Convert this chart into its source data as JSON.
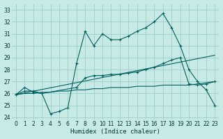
{
  "xlabel": "Humidex (Indice chaleur)",
  "bg_color": "#c8eae6",
  "grid_color": "#9dcfca",
  "line_color": "#006060",
  "x_ticks": [
    0,
    1,
    2,
    3,
    4,
    5,
    6,
    7,
    8,
    9,
    10,
    11,
    12,
    13,
    14,
    15,
    16,
    17,
    18,
    19,
    20,
    21,
    22,
    23
  ],
  "xlim": [
    -0.5,
    23.5
  ],
  "ylim": [
    23.8,
    33.5
  ],
  "yticks": [
    24,
    25,
    26,
    27,
    28,
    29,
    30,
    31,
    32,
    33
  ],
  "line1_x": [
    0,
    1,
    2,
    3,
    4,
    5,
    6,
    7,
    8,
    9,
    10,
    11,
    12,
    13,
    14,
    15,
    16,
    17,
    18,
    19,
    20,
    21,
    22,
    23
  ],
  "line1_y": [
    25.9,
    26.5,
    26.1,
    26.0,
    24.3,
    24.5,
    24.8,
    28.5,
    31.2,
    30.0,
    31.0,
    30.5,
    30.5,
    30.8,
    31.2,
    31.5,
    32.0,
    32.7,
    31.5,
    30.0,
    28.0,
    27.0,
    26.3,
    25.0
  ],
  "line1_markers": [
    0,
    1,
    2,
    3,
    4,
    5,
    6,
    7,
    8,
    9,
    10,
    11,
    12,
    13,
    14,
    15,
    16,
    17,
    18,
    19,
    20,
    21,
    22,
    23
  ],
  "line2_x": [
    0,
    1,
    2,
    3,
    7,
    8,
    9,
    10,
    11,
    12,
    13,
    14,
    15,
    16,
    17,
    18,
    19,
    20,
    21,
    22,
    23
  ],
  "line2_y": [
    25.9,
    26.2,
    26.2,
    26.0,
    26.5,
    27.3,
    27.5,
    27.5,
    27.6,
    27.6,
    27.7,
    27.8,
    28.0,
    28.2,
    28.5,
    28.8,
    29.0,
    26.8,
    26.7,
    26.8,
    27.0
  ],
  "line3_x": [
    0,
    1,
    2,
    3,
    4,
    5,
    6,
    7,
    8,
    9,
    10,
    11,
    12,
    13,
    14,
    15,
    16,
    17,
    18,
    19,
    20,
    21,
    22,
    23
  ],
  "line3_y": [
    25.9,
    26.0,
    26.0,
    26.1,
    26.1,
    26.2,
    26.2,
    26.3,
    26.3,
    26.4,
    26.4,
    26.5,
    26.5,
    26.5,
    26.6,
    26.6,
    26.6,
    26.7,
    26.7,
    26.7,
    26.7,
    26.8,
    26.9,
    27.0
  ],
  "line4_x": [
    0,
    23
  ],
  "line4_y": [
    25.9,
    29.2
  ]
}
